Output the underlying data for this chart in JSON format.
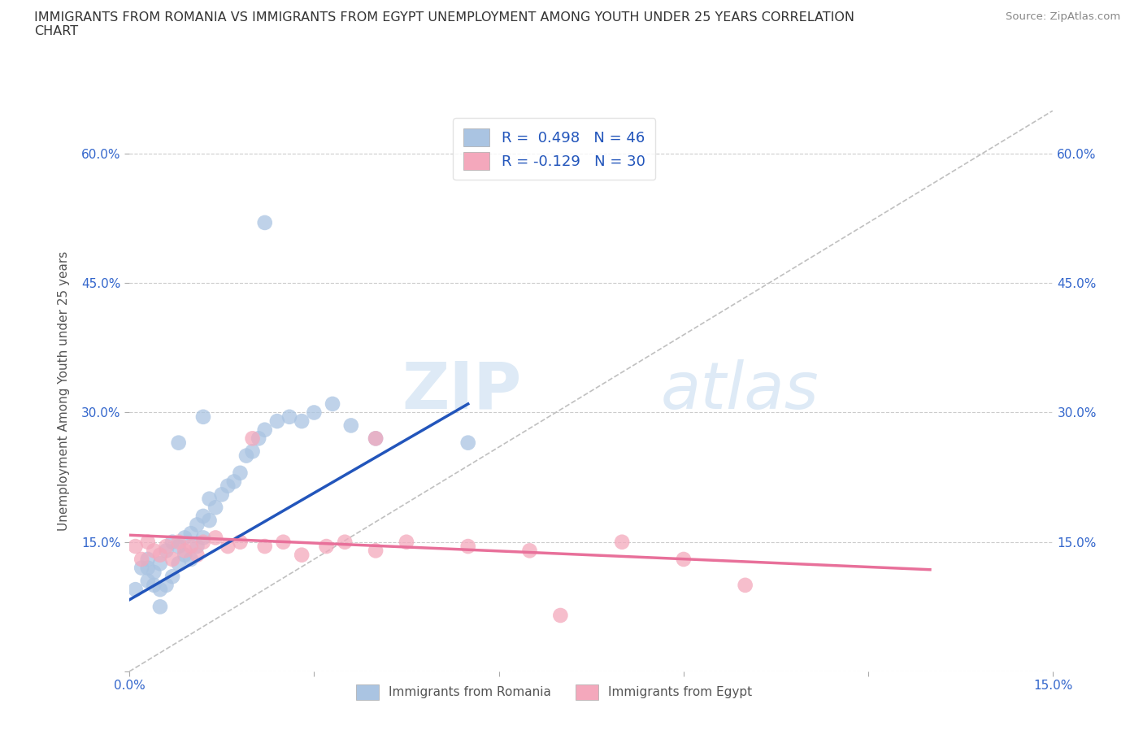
{
  "title": "IMMIGRANTS FROM ROMANIA VS IMMIGRANTS FROM EGYPT UNEMPLOYMENT AMONG YOUTH UNDER 25 YEARS CORRELATION\nCHART",
  "source": "Source: ZipAtlas.com",
  "ylabel": "Unemployment Among Youth under 25 years",
  "xlim": [
    0.0,
    0.15
  ],
  "ylim": [
    0.0,
    0.65
  ],
  "xticks": [
    0.0,
    0.03,
    0.06,
    0.09,
    0.12,
    0.15
  ],
  "yticks": [
    0.0,
    0.15,
    0.3,
    0.45,
    0.6
  ],
  "xticklabels": [
    "0.0%",
    "",
    "",
    "",
    "",
    "15.0%"
  ],
  "yticklabels_left": [
    "",
    "15.0%",
    "30.0%",
    "45.0%",
    "60.0%"
  ],
  "yticklabels_right": [
    "",
    "15.0%",
    "30.0%",
    "45.0%",
    "60.0%"
  ],
  "watermark_zip": "ZIP",
  "watermark_atlas": "atlas",
  "romania_color": "#aac4e2",
  "egypt_color": "#f4a8bc",
  "romania_line_color": "#2255bb",
  "egypt_line_color": "#e8709a",
  "diagonal_color": "#c0c0c0",
  "legend_label_romania": "R =  0.498   N = 46",
  "legend_label_egypt": "R = -0.129   N = 30",
  "romania_scatter_x": [
    0.001,
    0.002,
    0.003,
    0.003,
    0.004,
    0.004,
    0.005,
    0.005,
    0.006,
    0.006,
    0.007,
    0.007,
    0.008,
    0.008,
    0.009,
    0.009,
    0.01,
    0.01,
    0.011,
    0.011,
    0.012,
    0.012,
    0.013,
    0.013,
    0.014,
    0.015,
    0.016,
    0.017,
    0.018,
    0.019,
    0.02,
    0.021,
    0.022,
    0.024,
    0.026,
    0.028,
    0.03,
    0.033,
    0.036,
    0.04,
    0.022,
    0.055,
    0.005,
    0.012,
    0.008,
    0.003
  ],
  "romania_scatter_y": [
    0.095,
    0.12,
    0.105,
    0.13,
    0.1,
    0.115,
    0.095,
    0.125,
    0.1,
    0.14,
    0.11,
    0.15,
    0.125,
    0.145,
    0.135,
    0.155,
    0.13,
    0.16,
    0.145,
    0.17,
    0.155,
    0.18,
    0.175,
    0.2,
    0.19,
    0.205,
    0.215,
    0.22,
    0.23,
    0.25,
    0.255,
    0.27,
    0.28,
    0.29,
    0.295,
    0.29,
    0.3,
    0.31,
    0.285,
    0.27,
    0.52,
    0.265,
    0.075,
    0.295,
    0.265,
    0.12
  ],
  "egypt_scatter_x": [
    0.001,
    0.002,
    0.003,
    0.004,
    0.005,
    0.006,
    0.007,
    0.008,
    0.009,
    0.01,
    0.011,
    0.012,
    0.014,
    0.016,
    0.018,
    0.02,
    0.022,
    0.025,
    0.028,
    0.032,
    0.035,
    0.04,
    0.045,
    0.055,
    0.065,
    0.07,
    0.08,
    0.09,
    0.1,
    0.04
  ],
  "egypt_scatter_y": [
    0.145,
    0.13,
    0.15,
    0.14,
    0.135,
    0.145,
    0.13,
    0.15,
    0.14,
    0.145,
    0.135,
    0.15,
    0.155,
    0.145,
    0.15,
    0.27,
    0.145,
    0.15,
    0.135,
    0.145,
    0.15,
    0.14,
    0.15,
    0.145,
    0.14,
    0.065,
    0.15,
    0.13,
    0.1,
    0.27
  ],
  "ro_line_x0": 0.0,
  "ro_line_y0": 0.083,
  "ro_line_x1": 0.055,
  "ro_line_y1": 0.31,
  "eg_line_x0": 0.0,
  "eg_line_y0": 0.158,
  "eg_line_x1": 0.13,
  "eg_line_y1": 0.118,
  "background_color": "#ffffff",
  "grid_color": "#cccccc"
}
